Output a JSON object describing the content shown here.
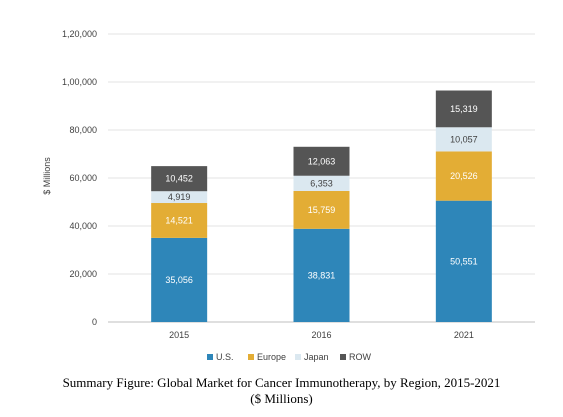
{
  "chart_data": {
    "type": "bar",
    "stacked": true,
    "categories": [
      "2015",
      "2016",
      "2021"
    ],
    "series": [
      {
        "name": "U.S.",
        "color": "#2e86b9",
        "values": [
          35056,
          38831,
          50551
        ],
        "labels": [
          "35,056",
          "38,831",
          "50,551"
        ]
      },
      {
        "name": "Europe",
        "color": "#e3ad35",
        "values": [
          14521,
          15759,
          20526
        ],
        "labels": [
          "14,521",
          "15,759",
          "20,526"
        ]
      },
      {
        "name": "Japan",
        "color": "#dbe8f0",
        "values": [
          4919,
          6353,
          10057
        ],
        "labels": [
          "4,919",
          "6,353",
          "10,057"
        ]
      },
      {
        "name": "ROW",
        "color": "#555555",
        "values": [
          10452,
          12063,
          15319
        ],
        "labels": [
          "10,452",
          "12,063",
          "15,319"
        ]
      }
    ],
    "ylabel": "$ Millions",
    "ylim": [
      0,
      120000
    ],
    "yticks": [
      0,
      20000,
      40000,
      60000,
      80000,
      100000,
      120000
    ],
    "ytick_labels": [
      "0",
      "20,000",
      "40,000",
      "60,000",
      "80,000",
      "1,00,000",
      "1,20,000"
    ],
    "grid": true,
    "legend_position": "bottom"
  },
  "caption": {
    "line1": "Summary Figure: Global Market for Cancer Immunotherapy, by Region, 2015-2021",
    "line2": "($ Millions)"
  }
}
